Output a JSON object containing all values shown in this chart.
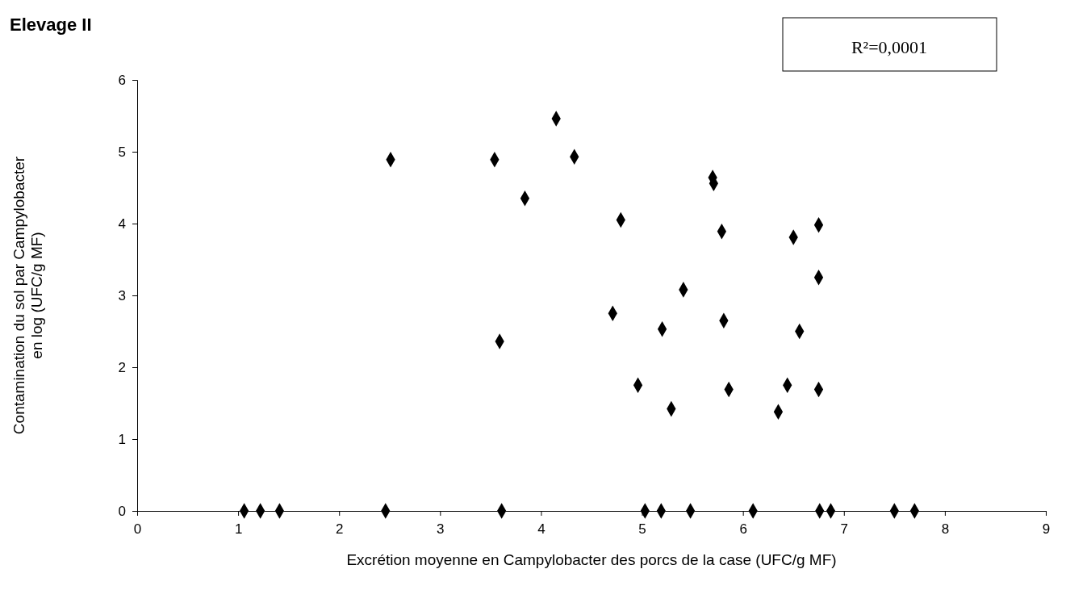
{
  "chart_data": {
    "type": "scatter",
    "title": "Elevage II",
    "xlabel": "Excrétion moyenne en Campylobacter des porcs de la case (UFC/g MF)",
    "ylabel": "Contamination du sol par Campylobacter\nen log (UFC/g MF)",
    "annotations": [
      "R²=0,0001"
    ],
    "x": [
      2.51,
      3.54,
      3.59,
      3.84,
      4.15,
      4.33,
      4.71,
      4.79,
      4.96,
      5.2,
      5.29,
      5.41,
      5.7,
      5.71,
      5.79,
      5.81,
      5.86,
      6.35,
      6.44,
      6.5,
      6.56,
      6.75,
      6.75,
      6.75,
      1.06,
      1.22,
      1.41,
      2.46,
      3.61,
      5.03,
      5.19,
      5.48,
      6.1,
      6.76,
      6.87,
      7.5,
      7.7
    ],
    "series": [
      {
        "color": "#000000",
        "values": [
          4.89,
          4.89,
          2.36,
          4.35,
          5.46,
          4.93,
          2.75,
          4.05,
          1.75,
          2.53,
          1.42,
          3.08,
          4.64,
          4.56,
          3.89,
          2.65,
          1.69,
          1.38,
          1.75,
          3.81,
          2.5,
          3.98,
          3.25,
          1.69,
          0,
          0,
          0,
          0,
          0,
          0,
          0,
          0,
          0,
          0,
          0,
          0,
          0
        ]
      }
    ],
    "xlim": [
      0,
      9
    ],
    "xticks": [
      0,
      1,
      2,
      3,
      4,
      5,
      6,
      7,
      8,
      9
    ],
    "ylim": [
      0,
      6
    ],
    "yticks": [
      0,
      1,
      2,
      3,
      4,
      5,
      6
    ],
    "marker": "diamond"
  }
}
